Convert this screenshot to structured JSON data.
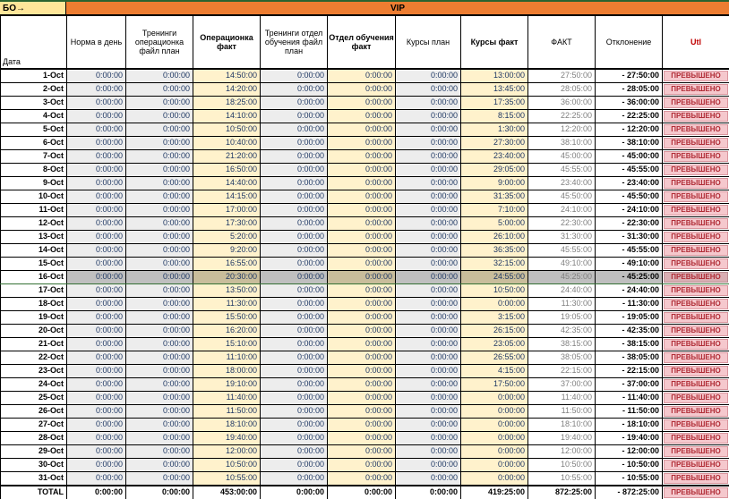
{
  "top_bar": {
    "corner_label": "БО→",
    "banner_label": "VIP"
  },
  "header": {
    "date_label": "Дата",
    "columns": [
      {
        "label": "Норма в день",
        "bold": false
      },
      {
        "label": "Тренинги операционка файл план",
        "bold": false
      },
      {
        "label": "Операционка факт",
        "bold": true
      },
      {
        "label": "Тренинги отдел обучения файл план",
        "bold": false
      },
      {
        "label": "Отдел обучения факт",
        "bold": true
      },
      {
        "label": "Курсы план",
        "bold": false
      },
      {
        "label": "Курсы факт",
        "bold": true
      },
      {
        "label": "ФАКТ",
        "bold": false
      },
      {
        "label": "Отклонение",
        "bold": false
      },
      {
        "label": "Utl",
        "bold": true
      }
    ]
  },
  "highlight_date": "16-Oct",
  "rows": [
    [
      "1-Oct",
      "0:00:00",
      "0:00:00",
      "14:50:00",
      "0:00:00",
      "0:00:00",
      "0:00:00",
      "13:00:00",
      "27:50:00",
      "- 27:50:00",
      "ПРЕВЫШЕНО"
    ],
    [
      "2-Oct",
      "0:00:00",
      "0:00:00",
      "14:20:00",
      "0:00:00",
      "0:00:00",
      "0:00:00",
      "13:45:00",
      "28:05:00",
      "- 28:05:00",
      "ПРЕВЫШЕНО"
    ],
    [
      "3-Oct",
      "0:00:00",
      "0:00:00",
      "18:25:00",
      "0:00:00",
      "0:00:00",
      "0:00:00",
      "17:35:00",
      "36:00:00",
      "- 36:00:00",
      "ПРЕВЫШЕНО"
    ],
    [
      "4-Oct",
      "0:00:00",
      "0:00:00",
      "14:10:00",
      "0:00:00",
      "0:00:00",
      "0:00:00",
      "8:15:00",
      "22:25:00",
      "- 22:25:00",
      "ПРЕВЫШЕНО"
    ],
    [
      "5-Oct",
      "0:00:00",
      "0:00:00",
      "10:50:00",
      "0:00:00",
      "0:00:00",
      "0:00:00",
      "1:30:00",
      "12:20:00",
      "- 12:20:00",
      "ПРЕВЫШЕНО"
    ],
    [
      "6-Oct",
      "0:00:00",
      "0:00:00",
      "10:40:00",
      "0:00:00",
      "0:00:00",
      "0:00:00",
      "27:30:00",
      "38:10:00",
      "- 38:10:00",
      "ПРЕВЫШЕНО"
    ],
    [
      "7-Oct",
      "0:00:00",
      "0:00:00",
      "21:20:00",
      "0:00:00",
      "0:00:00",
      "0:00:00",
      "23:40:00",
      "45:00:00",
      "- 45:00:00",
      "ПРЕВЫШЕНО"
    ],
    [
      "8-Oct",
      "0:00:00",
      "0:00:00",
      "16:50:00",
      "0:00:00",
      "0:00:00",
      "0:00:00",
      "29:05:00",
      "45:55:00",
      "- 45:55:00",
      "ПРЕВЫШЕНО"
    ],
    [
      "9-Oct",
      "0:00:00",
      "0:00:00",
      "14:40:00",
      "0:00:00",
      "0:00:00",
      "0:00:00",
      "9:00:00",
      "23:40:00",
      "- 23:40:00",
      "ПРЕВЫШЕНО"
    ],
    [
      "10-Oct",
      "0:00:00",
      "0:00:00",
      "14:15:00",
      "0:00:00",
      "0:00:00",
      "0:00:00",
      "31:35:00",
      "45:50:00",
      "- 45:50:00",
      "ПРЕВЫШЕНО"
    ],
    [
      "11-Oct",
      "0:00:00",
      "0:00:00",
      "17:00:00",
      "0:00:00",
      "0:00:00",
      "0:00:00",
      "7:10:00",
      "24:10:00",
      "- 24:10:00",
      "ПРЕВЫШЕНО"
    ],
    [
      "12-Oct",
      "0:00:00",
      "0:00:00",
      "17:30:00",
      "0:00:00",
      "0:00:00",
      "0:00:00",
      "5:00:00",
      "22:30:00",
      "- 22:30:00",
      "ПРЕВЫШЕНО"
    ],
    [
      "13-Oct",
      "0:00:00",
      "0:00:00",
      "5:20:00",
      "0:00:00",
      "0:00:00",
      "0:00:00",
      "26:10:00",
      "31:30:00",
      "- 31:30:00",
      "ПРЕВЫШЕНО"
    ],
    [
      "14-Oct",
      "0:00:00",
      "0:00:00",
      "9:20:00",
      "0:00:00",
      "0:00:00",
      "0:00:00",
      "36:35:00",
      "45:55:00",
      "- 45:55:00",
      "ПРЕВЫШЕНО"
    ],
    [
      "15-Oct",
      "0:00:00",
      "0:00:00",
      "16:55:00",
      "0:00:00",
      "0:00:00",
      "0:00:00",
      "32:15:00",
      "49:10:00",
      "- 49:10:00",
      "ПРЕВЫШЕНО"
    ],
    [
      "16-Oct",
      "0:00:00",
      "0:00:00",
      "20:30:00",
      "0:00:00",
      "0:00:00",
      "0:00:00",
      "24:55:00",
      "45:25:00",
      "- 45:25:00",
      "ПРЕВЫШЕНО"
    ],
    [
      "17-Oct",
      "0:00:00",
      "0:00:00",
      "13:50:00",
      "0:00:00",
      "0:00:00",
      "0:00:00",
      "10:50:00",
      "24:40:00",
      "- 24:40:00",
      "ПРЕВЫШЕНО"
    ],
    [
      "18-Oct",
      "0:00:00",
      "0:00:00",
      "11:30:00",
      "0:00:00",
      "0:00:00",
      "0:00:00",
      "0:00:00",
      "11:30:00",
      "- 11:30:00",
      "ПРЕВЫШЕНО"
    ],
    [
      "19-Oct",
      "0:00:00",
      "0:00:00",
      "15:50:00",
      "0:00:00",
      "0:00:00",
      "0:00:00",
      "3:15:00",
      "19:05:00",
      "- 19:05:00",
      "ПРЕВЫШЕНО"
    ],
    [
      "20-Oct",
      "0:00:00",
      "0:00:00",
      "16:20:00",
      "0:00:00",
      "0:00:00",
      "0:00:00",
      "26:15:00",
      "42:35:00",
      "- 42:35:00",
      "ПРЕВЫШЕНО"
    ],
    [
      "21-Oct",
      "0:00:00",
      "0:00:00",
      "15:10:00",
      "0:00:00",
      "0:00:00",
      "0:00:00",
      "23:05:00",
      "38:15:00",
      "- 38:15:00",
      "ПРЕВЫШЕНО"
    ],
    [
      "22-Oct",
      "0:00:00",
      "0:00:00",
      "11:10:00",
      "0:00:00",
      "0:00:00",
      "0:00:00",
      "26:55:00",
      "38:05:00",
      "- 38:05:00",
      "ПРЕВЫШЕНО"
    ],
    [
      "23-Oct",
      "0:00:00",
      "0:00:00",
      "18:00:00",
      "0:00:00",
      "0:00:00",
      "0:00:00",
      "4:15:00",
      "22:15:00",
      "- 22:15:00",
      "ПРЕВЫШЕНО"
    ],
    [
      "24-Oct",
      "0:00:00",
      "0:00:00",
      "19:10:00",
      "0:00:00",
      "0:00:00",
      "0:00:00",
      "17:50:00",
      "37:00:00",
      "- 37:00:00",
      "ПРЕВЫШЕНО"
    ],
    [
      "25-Oct",
      "0:00:00",
      "0:00:00",
      "11:40:00",
      "0:00:00",
      "0:00:00",
      "0:00:00",
      "0:00:00",
      "11:40:00",
      "- 11:40:00",
      "ПРЕВЫШЕНО"
    ],
    [
      "26-Oct",
      "0:00:00",
      "0:00:00",
      "11:50:00",
      "0:00:00",
      "0:00:00",
      "0:00:00",
      "0:00:00",
      "11:50:00",
      "- 11:50:00",
      "ПРЕВЫШЕНО"
    ],
    [
      "27-Oct",
      "0:00:00",
      "0:00:00",
      "18:10:00",
      "0:00:00",
      "0:00:00",
      "0:00:00",
      "0:00:00",
      "18:10:00",
      "- 18:10:00",
      "ПРЕВЫШЕНО"
    ],
    [
      "28-Oct",
      "0:00:00",
      "0:00:00",
      "19:40:00",
      "0:00:00",
      "0:00:00",
      "0:00:00",
      "0:00:00",
      "19:40:00",
      "- 19:40:00",
      "ПРЕВЫШЕНО"
    ],
    [
      "29-Oct",
      "0:00:00",
      "0:00:00",
      "12:00:00",
      "0:00:00",
      "0:00:00",
      "0:00:00",
      "0:00:00",
      "12:00:00",
      "- 12:00:00",
      "ПРЕВЫШЕНО"
    ],
    [
      "30-Oct",
      "0:00:00",
      "0:00:00",
      "10:50:00",
      "0:00:00",
      "0:00:00",
      "0:00:00",
      "0:00:00",
      "10:50:00",
      "- 10:50:00",
      "ПРЕВЫШЕНО"
    ],
    [
      "31-Oct",
      "0:00:00",
      "0:00:00",
      "10:55:00",
      "0:00:00",
      "0:00:00",
      "0:00:00",
      "0:00:00",
      "10:55:00",
      "- 10:55:00",
      "ПРЕВЫШЕНО"
    ]
  ],
  "total_row": [
    "TOTAL",
    "0:00:00",
    "0:00:00",
    "453:00:00",
    "0:00:00",
    "0:00:00",
    "0:00:00",
    "419:25:00",
    "872:25:00",
    "- 872:25:00",
    "ПРЕВЫШЕНО"
  ],
  "colors": {
    "banner_orange": "#ED7D31",
    "corner_yellow": "#FFE699",
    "plan_gray": "#EDEDED",
    "fact_cream": "#FFF2CC",
    "status_pink": "#F5C8CD",
    "status_text_red": "#B02B35",
    "header_utl_red": "#C00000",
    "value_blue": "#1F3864",
    "highlight_gray": "#BFBFBF",
    "highlight_border_green": "#337033",
    "top_line_green": "#2a6330"
  }
}
